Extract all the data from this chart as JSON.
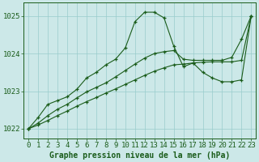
{
  "title": "Graphe pression niveau de la mer (hPa)",
  "bg_color": "#cce8e8",
  "grid_color": "#99cccc",
  "line_color": "#1a5c1a",
  "hours": [
    0,
    1,
    2,
    3,
    4,
    5,
    6,
    7,
    8,
    9,
    10,
    11,
    12,
    13,
    14,
    15,
    16,
    17,
    18,
    19,
    20,
    21,
    22,
    23
  ],
  "main_line": [
    1022.0,
    1022.3,
    1022.65,
    1022.75,
    1022.85,
    1023.05,
    1023.35,
    1023.5,
    1023.7,
    1023.85,
    1024.15,
    1024.85,
    1025.1,
    1025.1,
    1024.95,
    1024.2,
    1023.65,
    1023.75,
    1023.5,
    1023.35,
    1023.25,
    1023.25,
    1023.3,
    1025.0
  ],
  "upper_line": [
    1022.0,
    1022.15,
    1022.35,
    1022.52,
    1022.65,
    1022.82,
    1022.98,
    1023.1,
    1023.22,
    1023.38,
    1023.55,
    1023.72,
    1023.88,
    1024.0,
    1024.05,
    1024.08,
    1023.85,
    1023.82,
    1023.82,
    1023.82,
    1023.82,
    1023.9,
    1024.38,
    1025.0
  ],
  "lower_line": [
    1022.0,
    1022.1,
    1022.22,
    1022.35,
    1022.47,
    1022.6,
    1022.72,
    1022.83,
    1022.95,
    1023.06,
    1023.18,
    1023.3,
    1023.42,
    1023.53,
    1023.62,
    1023.7,
    1023.72,
    1023.75,
    1023.77,
    1023.78,
    1023.78,
    1023.78,
    1023.82,
    1025.0
  ],
  "ylim": [
    1021.75,
    1025.35
  ],
  "yticks": [
    1022,
    1023,
    1024,
    1025
  ],
  "tick_fontsize": 6.5,
  "title_fontsize": 7.0
}
